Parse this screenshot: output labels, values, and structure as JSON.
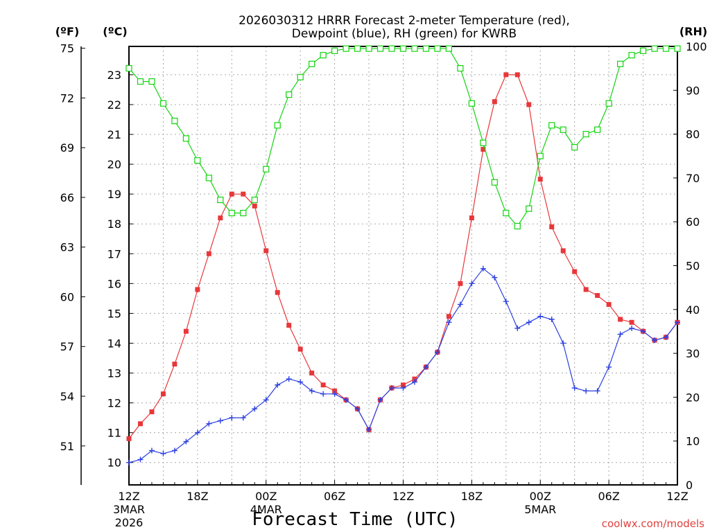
{
  "chart_data": {
    "type": "line",
    "title_line1": "2026030312 HRRR Forecast 2-meter Temperature (red),",
    "title_line2": "Dewpoint (blue), RH (green) for KWRB",
    "left_outer_axis_label": "(ºF)",
    "left_axis_label": "(ºC)",
    "right_axis_label": "(RH)",
    "xlabel": "Forecast Time (UTC)",
    "credit": "coolwx.com/models",
    "fahrenheit_ticks": [
      "51",
      "54",
      "57",
      "60",
      "63",
      "66",
      "69",
      "72",
      "75"
    ],
    "celsius_ticks": [
      "10",
      "11",
      "12",
      "13",
      "14",
      "15",
      "16",
      "17",
      "18",
      "19",
      "20",
      "21",
      "22",
      "23"
    ],
    "rh_ticks": [
      "0",
      "10",
      "20",
      "30",
      "40",
      "50",
      "60",
      "70",
      "80",
      "90",
      "100"
    ],
    "x_ticks": [
      {
        "hour": 0,
        "label": "12Z",
        "sub1": "3MAR",
        "sub2": "2026"
      },
      {
        "hour": 6,
        "label": "18Z"
      },
      {
        "hour": 12,
        "label": "00Z",
        "sub1": "4MAR"
      },
      {
        "hour": 18,
        "label": "06Z"
      },
      {
        "hour": 24,
        "label": "12Z"
      },
      {
        "hour": 30,
        "label": "18Z"
      },
      {
        "hour": 36,
        "label": "00Z",
        "sub1": "5MAR"
      },
      {
        "hour": 42,
        "label": "06Z"
      },
      {
        "hour": 48,
        "label": "12Z"
      }
    ],
    "xlim": [
      0,
      48
    ],
    "celsius_lim": [
      9.25,
      23.95
    ],
    "rh_lim": [
      0,
      100
    ],
    "series": [
      {
        "name": "Temperature (°C)",
        "color": "#e8373a",
        "marker": "filled-square",
        "axis": "celsius",
        "values": [
          10.8,
          11.3,
          11.7,
          12.3,
          13.3,
          14.4,
          15.8,
          17.0,
          18.2,
          19.0,
          19.0,
          18.6,
          17.1,
          15.7,
          14.6,
          13.8,
          13.0,
          12.6,
          12.4,
          12.1,
          11.8,
          11.1,
          12.1,
          12.5,
          12.6,
          12.8,
          13.2,
          13.7,
          14.9,
          16.0,
          18.2,
          20.5,
          22.1,
          23.0,
          23.0,
          22.0,
          19.5,
          17.9,
          17.1,
          16.4,
          15.8,
          15.6,
          15.3,
          14.8,
          14.7,
          14.4,
          14.1,
          14.2,
          14.7
        ]
      },
      {
        "name": "Dewpoint (°C)",
        "color": "#2b3fe0",
        "marker": "plus",
        "axis": "celsius",
        "values": [
          10.0,
          10.1,
          10.4,
          10.3,
          10.4,
          10.7,
          11.0,
          11.3,
          11.4,
          11.5,
          11.5,
          11.8,
          12.1,
          12.6,
          12.8,
          12.7,
          12.4,
          12.3,
          12.3,
          12.1,
          11.8,
          11.1,
          12.1,
          12.5,
          12.5,
          12.7,
          13.2,
          13.7,
          14.7,
          15.3,
          16.0,
          16.5,
          16.2,
          15.4,
          14.5,
          14.7,
          14.9,
          14.8,
          14.0,
          12.5,
          12.4,
          12.4,
          13.2,
          14.3,
          14.5,
          14.4,
          14.1,
          14.2,
          14.7
        ]
      },
      {
        "name": "RH (%)",
        "color": "#12d40e",
        "marker": "open-square",
        "axis": "rh",
        "values": [
          95,
          92,
          92,
          87,
          83,
          79,
          74,
          70,
          65,
          62,
          62,
          65,
          72,
          82,
          89,
          93,
          96,
          98,
          99,
          99.5,
          99.5,
          99.5,
          99.5,
          99.5,
          99.5,
          99.5,
          99.5,
          99.5,
          99.5,
          95,
          87,
          78,
          69,
          62,
          59,
          63,
          75,
          82,
          81,
          77,
          80,
          81,
          87,
          96,
          98,
          99,
          99.5,
          99.5,
          99.5
        ]
      }
    ]
  }
}
